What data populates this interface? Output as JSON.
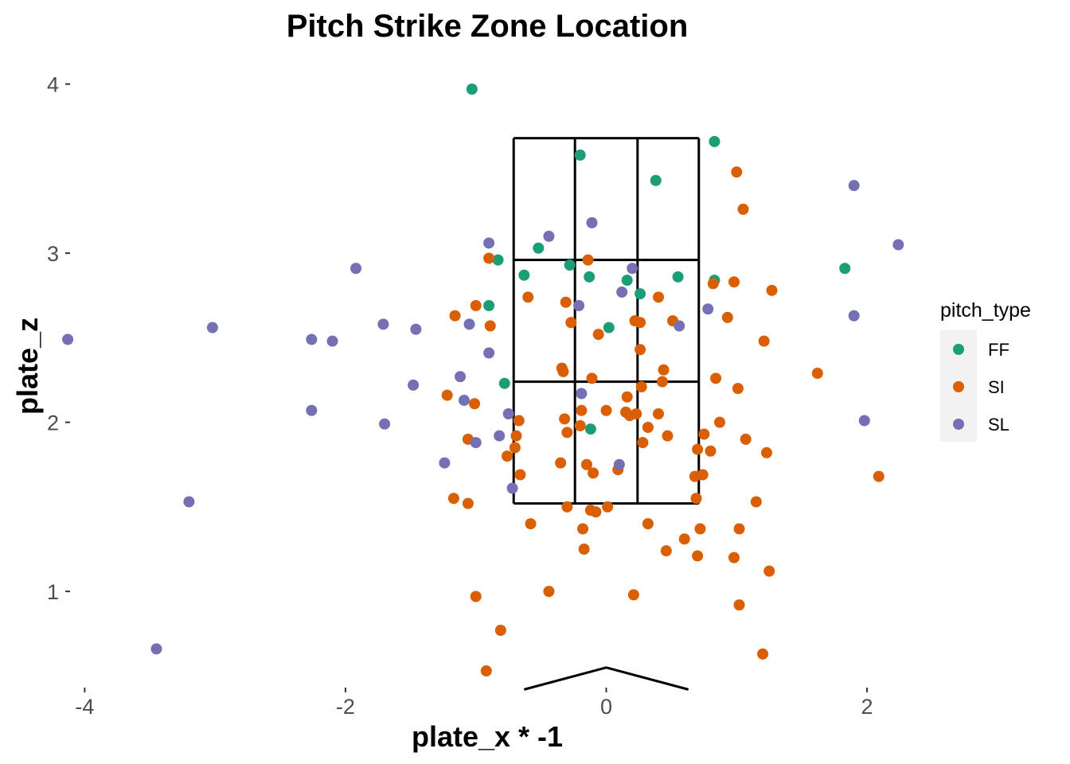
{
  "chart_data": {
    "type": "scatter",
    "title": "Pitch Strike Zone Location",
    "xlabel": "plate_x * -1",
    "ylabel": "plate_z",
    "xlim": [
      -4.1,
      2.25
    ],
    "ylim": [
      0.45,
      4.05
    ],
    "x_ticks": [
      -4,
      -2,
      0,
      2
    ],
    "y_ticks": [
      1,
      2,
      3,
      4
    ],
    "grid": false,
    "legend": {
      "title": "pitch_type",
      "position": "right"
    },
    "strike_zone": {
      "x_lines": [
        -0.71,
        -0.24,
        0.24,
        0.71
      ],
      "z_lines": [
        1.52,
        2.24,
        2.96,
        3.68
      ]
    },
    "home_plate": {
      "x": [
        -0.63,
        0.0,
        0.63
      ],
      "z": [
        0.42,
        0.55,
        0.42
      ]
    },
    "series": [
      {
        "name": "FF",
        "color": "#1b9e77",
        "points": [
          [
            -1.03,
            3.97
          ],
          [
            0.83,
            3.66
          ],
          [
            -0.2,
            3.58
          ],
          [
            0.38,
            3.43
          ],
          [
            -0.52,
            3.03
          ],
          [
            -0.83,
            2.96
          ],
          [
            -0.63,
            2.87
          ],
          [
            -0.28,
            2.93
          ],
          [
            -0.13,
            2.86
          ],
          [
            0.16,
            2.84
          ],
          [
            0.55,
            2.86
          ],
          [
            0.83,
            2.84
          ],
          [
            1.83,
            2.91
          ],
          [
            -0.9,
            2.69
          ],
          [
            0.26,
            2.76
          ],
          [
            0.02,
            2.56
          ],
          [
            -0.78,
            2.23
          ],
          [
            -0.12,
            1.96
          ]
        ]
      },
      {
        "name": "SI",
        "color": "#d95f02",
        "points": [
          [
            1.0,
            3.48
          ],
          [
            1.05,
            3.26
          ],
          [
            -0.9,
            2.97
          ],
          [
            -0.14,
            2.96
          ],
          [
            -0.6,
            2.74
          ],
          [
            -1.0,
            2.69
          ],
          [
            -0.31,
            2.71
          ],
          [
            0.4,
            2.74
          ],
          [
            0.82,
            2.82
          ],
          [
            0.98,
            2.83
          ],
          [
            1.27,
            2.78
          ],
          [
            -1.16,
            2.63
          ],
          [
            -0.89,
            2.57
          ],
          [
            -0.27,
            2.59
          ],
          [
            -0.06,
            2.52
          ],
          [
            0.22,
            2.6
          ],
          [
            0.26,
            2.59
          ],
          [
            0.51,
            2.6
          ],
          [
            0.93,
            2.62
          ],
          [
            1.21,
            2.48
          ],
          [
            -0.34,
            2.32
          ],
          [
            -0.33,
            2.3
          ],
          [
            0.26,
            2.43
          ],
          [
            0.44,
            2.31
          ],
          [
            -0.11,
            2.26
          ],
          [
            0.43,
            2.24
          ],
          [
            0.84,
            2.26
          ],
          [
            1.62,
            2.29
          ],
          [
            -1.22,
            2.16
          ],
          [
            -1.01,
            2.11
          ],
          [
            0.16,
            2.15
          ],
          [
            0.27,
            2.21
          ],
          [
            1.01,
            2.2
          ],
          [
            -0.67,
            2.01
          ],
          [
            -0.32,
            2.02
          ],
          [
            -0.2,
            1.98
          ],
          [
            -0.19,
            2.07
          ],
          [
            0.0,
            2.07
          ],
          [
            0.15,
            2.06
          ],
          [
            0.18,
            2.04
          ],
          [
            0.23,
            2.05
          ],
          [
            0.32,
            1.97
          ],
          [
            0.4,
            2.05
          ],
          [
            0.87,
            2.0
          ],
          [
            -1.06,
            1.9
          ],
          [
            -0.69,
            1.92
          ],
          [
            -0.3,
            1.94
          ],
          [
            0.28,
            1.88
          ],
          [
            0.47,
            1.92
          ],
          [
            0.75,
            1.93
          ],
          [
            -0.7,
            1.85
          ],
          [
            -0.76,
            1.8
          ],
          [
            0.7,
            1.84
          ],
          [
            0.8,
            1.83
          ],
          [
            1.07,
            1.9
          ],
          [
            1.23,
            1.82
          ],
          [
            -0.35,
            1.76
          ],
          [
            -0.15,
            1.75
          ],
          [
            -0.1,
            1.7
          ],
          [
            0.09,
            1.72
          ],
          [
            -0.66,
            1.69
          ],
          [
            0.68,
            1.68
          ],
          [
            0.74,
            1.69
          ],
          [
            2.09,
            1.68
          ],
          [
            -1.17,
            1.55
          ],
          [
            -1.06,
            1.52
          ],
          [
            0.69,
            1.55
          ],
          [
            1.15,
            1.53
          ],
          [
            -0.3,
            1.5
          ],
          [
            -0.12,
            1.48
          ],
          [
            -0.08,
            1.47
          ],
          [
            0.01,
            1.5
          ],
          [
            -0.58,
            1.4
          ],
          [
            -0.18,
            1.37
          ],
          [
            0.32,
            1.4
          ],
          [
            0.72,
            1.37
          ],
          [
            1.02,
            1.37
          ],
          [
            0.6,
            1.31
          ],
          [
            -0.17,
            1.25
          ],
          [
            0.46,
            1.24
          ],
          [
            0.7,
            1.21
          ],
          [
            0.98,
            1.2
          ],
          [
            1.25,
            1.12
          ],
          [
            -0.44,
            1.0
          ],
          [
            -1.0,
            0.97
          ],
          [
            0.21,
            0.98
          ],
          [
            1.02,
            0.92
          ],
          [
            -0.81,
            0.77
          ],
          [
            1.2,
            0.63
          ],
          [
            -0.92,
            0.53
          ]
        ]
      },
      {
        "name": "SL",
        "color": "#7570b3",
        "points": [
          [
            -0.11,
            3.18
          ],
          [
            -0.44,
            3.1
          ],
          [
            -0.9,
            3.06
          ],
          [
            1.9,
            3.4
          ],
          [
            2.24,
            3.05
          ],
          [
            -1.92,
            2.91
          ],
          [
            0.2,
            2.91
          ],
          [
            0.12,
            2.77
          ],
          [
            -0.21,
            2.69
          ],
          [
            0.78,
            2.67
          ],
          [
            1.9,
            2.63
          ],
          [
            -4.13,
            2.49
          ],
          [
            -3.02,
            2.56
          ],
          [
            -2.26,
            2.49
          ],
          [
            -2.1,
            2.48
          ],
          [
            -1.71,
            2.58
          ],
          [
            -1.46,
            2.55
          ],
          [
            -1.05,
            2.58
          ],
          [
            0.56,
            2.57
          ],
          [
            -0.9,
            2.41
          ],
          [
            -1.48,
            2.22
          ],
          [
            -1.12,
            2.27
          ],
          [
            -1.09,
            2.13
          ],
          [
            -0.19,
            2.17
          ],
          [
            -2.26,
            2.07
          ],
          [
            -1.7,
            1.99
          ],
          [
            -0.75,
            2.05
          ],
          [
            1.98,
            2.01
          ],
          [
            -0.82,
            1.92
          ],
          [
            -1.0,
            1.88
          ],
          [
            -1.24,
            1.76
          ],
          [
            0.1,
            1.75
          ],
          [
            -0.72,
            1.61
          ],
          [
            -3.2,
            1.53
          ],
          [
            -3.45,
            0.66
          ]
        ]
      }
    ]
  }
}
